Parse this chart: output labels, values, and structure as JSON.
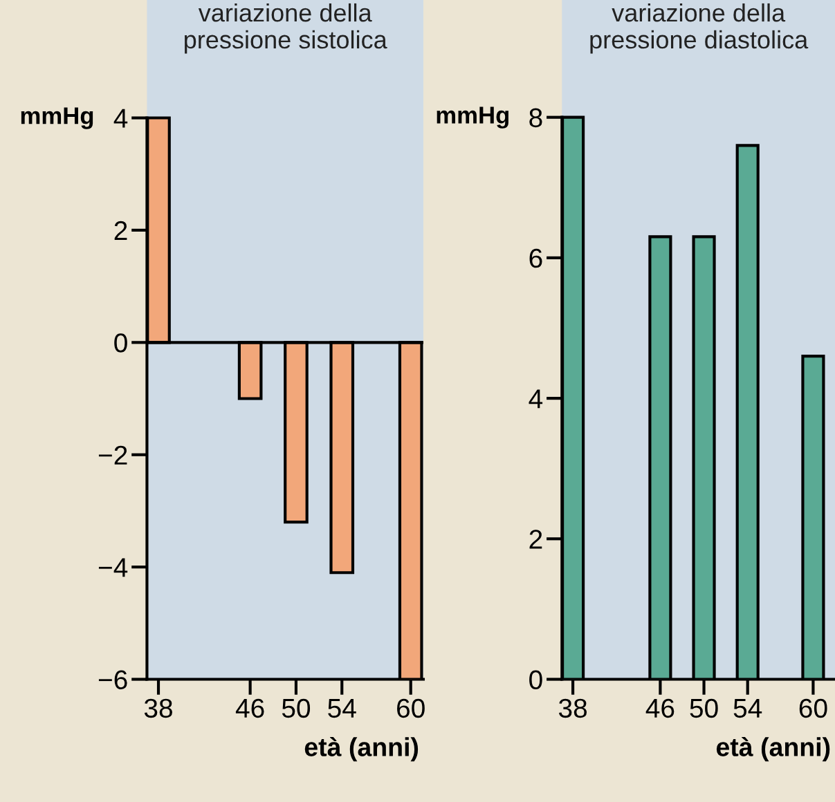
{
  "chart_data": [
    {
      "type": "bar",
      "title": "variazione della\npressione sistolica",
      "ylabel": "mmHg",
      "xlabel": "età (anni)",
      "x": [
        38,
        46,
        50,
        54,
        60
      ],
      "series": [
        {
          "color": "#f2a77a",
          "values": [
            4,
            -1,
            -3.2,
            -4.1,
            -6
          ]
        }
      ],
      "xlim": [
        37,
        61.1
      ],
      "xticks": [
        38,
        46,
        50,
        54,
        60
      ],
      "ylim": [
        -6,
        6.1
      ],
      "yticks": [
        -6,
        -4,
        -2,
        0,
        2,
        4
      ],
      "ref_lines": [
        {
          "axis": "y",
          "value": 0,
          "color": "#000000"
        }
      ],
      "grid": false,
      "legend": false
    },
    {
      "type": "bar",
      "title": "variazione della\npressione diastolica",
      "ylabel": "mmHg",
      "xlabel": "età (anni)",
      "x": [
        38,
        46,
        50,
        54,
        60
      ],
      "series": [
        {
          "color": "#5aaa94",
          "values": [
            8,
            6.3,
            6.3,
            7.6,
            4.6
          ]
        }
      ],
      "xlim": [
        37,
        62
      ],
      "xticks": [
        38,
        46,
        50,
        54,
        60
      ],
      "ylim": [
        0,
        9.67
      ],
      "yticks": [
        0,
        2,
        4,
        6,
        8
      ],
      "grid": false,
      "legend": false
    }
  ]
}
